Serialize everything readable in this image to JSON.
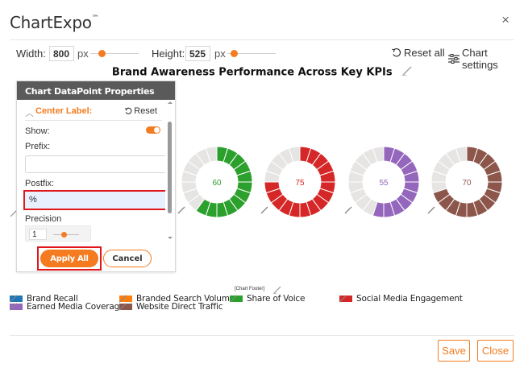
{
  "app": {
    "title": "ChartExpo",
    "trademark": "™",
    "close_icon": "×"
  },
  "toolbar": {
    "width_label": "Width:",
    "width_value": "800",
    "width_unit": "px",
    "height_label": "Height:",
    "height_value": "525",
    "height_unit": "px",
    "reset_all_label": "Reset all",
    "chart_settings_label": "Chart settings"
  },
  "chart": {
    "title": "Brand Awareness Performance Across Key KPIs",
    "footer_placeholder": "[Chart Footer]"
  },
  "panel": {
    "header": "Chart DataPoint Properties",
    "section_title": "Center Label:",
    "reset_label": "Reset",
    "show_label": "Show:",
    "show_enabled": true,
    "prefix_label": "Prefix:",
    "prefix_value": "",
    "postfix_label": "Postfix:",
    "postfix_value": "%",
    "precision_label": "Precision",
    "precision_value": "1",
    "apply_label": "Apply All",
    "cancel_label": "Cancel"
  },
  "footer": {
    "save_label": "Save",
    "close_label": "Close"
  },
  "colors": {
    "accent": "#f47b20",
    "highlight": "#e0161b",
    "empty_segment": "#e6e5e3"
  },
  "chart_data": {
    "type": "donut",
    "title": "Brand Awareness Performance Across Key KPIs",
    "segments_per_ring": 20,
    "visible_series": [
      {
        "name": "Share of Voice",
        "value": 60,
        "color": "#2ca02c"
      },
      {
        "name": "Social Media Engagement",
        "value": 75,
        "color": "#d62728"
      },
      {
        "name": "Earned Media Coverage",
        "value": 55,
        "color": "#9467bd"
      },
      {
        "name": "Website Direct Traffic",
        "value": 70,
        "color": "#8c564b"
      }
    ],
    "legend": [
      {
        "name": "Brand Recall",
        "color": "#1f77b4"
      },
      {
        "name": "Earned Media Coverage",
        "color": "#9467bd"
      },
      {
        "name": "Branded Search Volume",
        "color": "#ff7f0e"
      },
      {
        "name": "Website Direct Traffic",
        "color": "#8c564b"
      },
      {
        "name": "Share of Voice",
        "color": "#2ca02c"
      },
      {
        "name": "Social Media Engagement",
        "color": "#d62728"
      }
    ]
  }
}
